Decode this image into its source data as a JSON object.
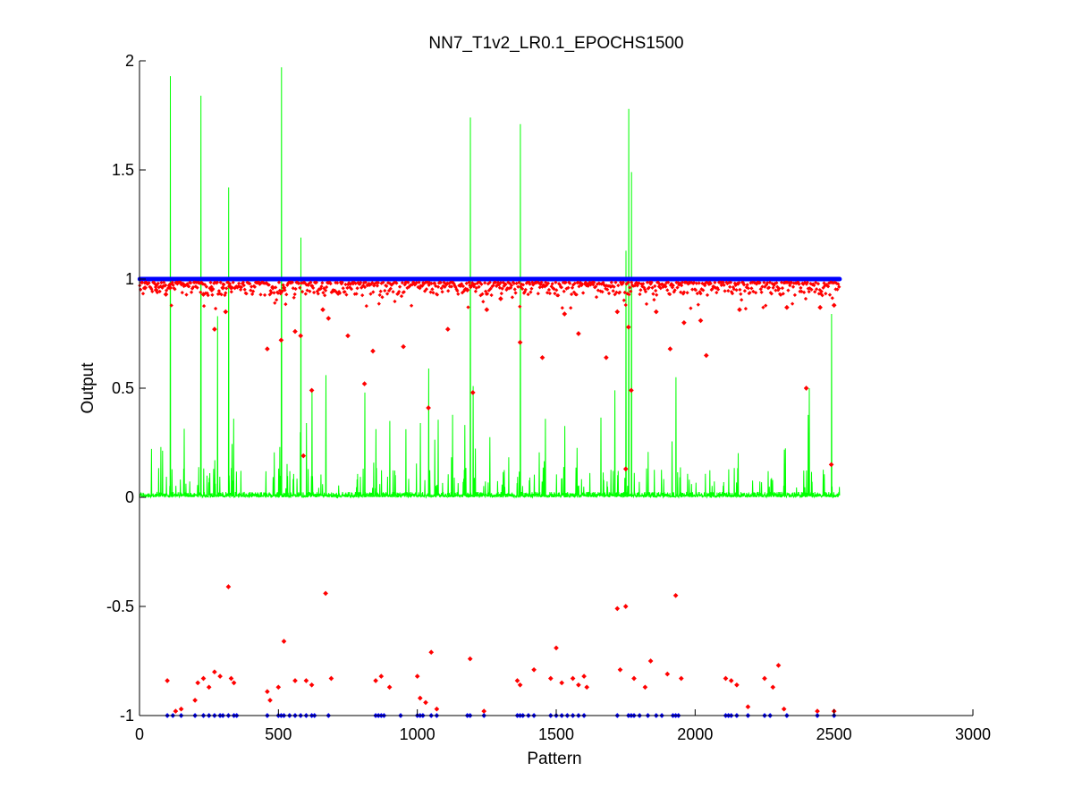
{
  "chart_data": {
    "type": "scatter",
    "title": "NN7_T1v2_LR0.1_EPOCHS1500",
    "xlabel": "Pattern",
    "ylabel": "Output",
    "xlim": [
      0,
      3000
    ],
    "ylim": [
      -1,
      2
    ],
    "xticks": [
      0,
      500,
      1000,
      1500,
      2000,
      2500,
      3000
    ],
    "xtick_labels": [
      "0",
      "500",
      "1000",
      "1500",
      "2000",
      "2500",
      "3000"
    ],
    "yticks": [
      -1,
      -0.5,
      0,
      0.5,
      1,
      1.5,
      2
    ],
    "ytick_labels": [
      "-1",
      "-0.5",
      "0",
      "0.5",
      "1",
      "1.5",
      "2"
    ],
    "grid": false,
    "legend": "none",
    "n_patterns": 2520,
    "colors": {
      "target": "#0000ff",
      "output": "#ff0000",
      "error": "#00ff00",
      "axes": "#000000"
    },
    "series": [
      {
        "style": "blue dots",
        "values_positive_target": {
          "x_range": [
            1,
            2520
          ],
          "y": 1
        },
        "negative_target_x": [
          100,
          120,
          150,
          200,
          230,
          250,
          270,
          290,
          300,
          320,
          340,
          350,
          460,
          500,
          510,
          520,
          540,
          560,
          580,
          600,
          620,
          630,
          680,
          850,
          860,
          870,
          880,
          940,
          1000,
          1010,
          1020,
          1050,
          1070,
          1180,
          1190,
          1240,
          1360,
          1370,
          1380,
          1400,
          1420,
          1480,
          1500,
          1520,
          1540,
          1560,
          1580,
          1600,
          1720,
          1760,
          1770,
          1780,
          1800,
          1830,
          1860,
          1880,
          1920,
          1930,
          1940,
          2110,
          2120,
          2130,
          2150,
          2190,
          2250,
          2270,
          2330,
          2440,
          2500
        ],
        "negative_target_y": -1
      },
      {
        "style": "red dots",
        "upper_points": [
          [
            20,
            0.96
          ],
          [
            60,
            0.95
          ],
          [
            95,
            0.93
          ],
          [
            110,
            0.96
          ],
          [
            230,
            0.93
          ],
          [
            260,
            0.95
          ],
          [
            270,
            0.77
          ],
          [
            300,
            0.96
          ],
          [
            310,
            0.85
          ],
          [
            330,
            0.96
          ],
          [
            460,
            0.68
          ],
          [
            480,
            0.96
          ],
          [
            510,
            0.72
          ],
          [
            520,
            0.96
          ],
          [
            560,
            0.76
          ],
          [
            580,
            0.74
          ],
          [
            590,
            0.19
          ],
          [
            620,
            0.49
          ],
          [
            660,
            0.86
          ],
          [
            680,
            0.82
          ],
          [
            750,
            0.74
          ],
          [
            810,
            0.52
          ],
          [
            840,
            0.67
          ],
          [
            950,
            0.69
          ],
          [
            1040,
            0.41
          ],
          [
            1110,
            0.77
          ],
          [
            1180,
            0.95
          ],
          [
            1200,
            0.48
          ],
          [
            1250,
            0.86
          ],
          [
            1300,
            0.91
          ],
          [
            1370,
            0.71
          ],
          [
            1450,
            0.64
          ],
          [
            1530,
            0.84
          ],
          [
            1580,
            0.75
          ],
          [
            1680,
            0.64
          ],
          [
            1720,
            0.85
          ],
          [
            1750,
            0.13
          ],
          [
            1760,
            0.78
          ],
          [
            1770,
            0.49
          ],
          [
            1860,
            0.85
          ],
          [
            1910,
            0.68
          ],
          [
            1960,
            0.8
          ],
          [
            2020,
            0.81
          ],
          [
            2040,
            0.65
          ],
          [
            2160,
            0.86
          ],
          [
            2330,
            0.87
          ],
          [
            2400,
            0.5
          ],
          [
            2450,
            0.87
          ],
          [
            2490,
            0.15
          ],
          [
            2500,
            0.88
          ]
        ],
        "lower_points": [
          [
            100,
            -0.84
          ],
          [
            130,
            -0.98
          ],
          [
            150,
            -0.97
          ],
          [
            200,
            -0.93
          ],
          [
            210,
            -0.85
          ],
          [
            230,
            -0.83
          ],
          [
            250,
            -0.87
          ],
          [
            270,
            -0.8
          ],
          [
            290,
            -0.82
          ],
          [
            320,
            -0.41
          ],
          [
            330,
            -0.83
          ],
          [
            340,
            -0.85
          ],
          [
            460,
            -0.89
          ],
          [
            470,
            -0.93
          ],
          [
            500,
            -0.87
          ],
          [
            520,
            -0.66
          ],
          [
            560,
            -0.84
          ],
          [
            600,
            -0.84
          ],
          [
            620,
            -0.86
          ],
          [
            670,
            -0.44
          ],
          [
            690,
            -0.83
          ],
          [
            850,
            -0.84
          ],
          [
            870,
            -0.82
          ],
          [
            900,
            -0.87
          ],
          [
            1000,
            -0.82
          ],
          [
            1010,
            -0.92
          ],
          [
            1030,
            -0.94
          ],
          [
            1050,
            -0.71
          ],
          [
            1070,
            -0.97
          ],
          [
            1190,
            -0.74
          ],
          [
            1240,
            -0.98
          ],
          [
            1360,
            -0.84
          ],
          [
            1370,
            -0.86
          ],
          [
            1420,
            -0.79
          ],
          [
            1480,
            -0.83
          ],
          [
            1500,
            -0.69
          ],
          [
            1520,
            -0.85
          ],
          [
            1560,
            -0.83
          ],
          [
            1580,
            -0.86
          ],
          [
            1600,
            -0.82
          ],
          [
            1610,
            -0.87
          ],
          [
            1720,
            -0.51
          ],
          [
            1730,
            -0.79
          ],
          [
            1750,
            -0.5
          ],
          [
            1780,
            -0.83
          ],
          [
            1820,
            -0.87
          ],
          [
            1840,
            -0.75
          ],
          [
            1900,
            -0.81
          ],
          [
            1930,
            -0.45
          ],
          [
            1950,
            -0.83
          ],
          [
            2110,
            -0.83
          ],
          [
            2130,
            -0.84
          ],
          [
            2150,
            -0.86
          ],
          [
            2190,
            -0.96
          ],
          [
            2250,
            -0.83
          ],
          [
            2280,
            -0.87
          ],
          [
            2300,
            -0.77
          ],
          [
            2320,
            -0.97
          ],
          [
            2440,
            -0.98
          ],
          [
            2500,
            -0.98
          ]
        ]
      },
      {
        "style": "green line",
        "spikes": [
          [
            110,
            1.93
          ],
          [
            220,
            1.84
          ],
          [
            270,
            0.17
          ],
          [
            280,
            0.83
          ],
          [
            320,
            1.42
          ],
          [
            510,
            1.97
          ],
          [
            580,
            1.19
          ],
          [
            600,
            0.34
          ],
          [
            620,
            0.49
          ],
          [
            670,
            0.56
          ],
          [
            810,
            0.48
          ],
          [
            900,
            0.35
          ],
          [
            1040,
            0.59
          ],
          [
            1190,
            1.74
          ],
          [
            1200,
            0.51
          ],
          [
            1370,
            1.71
          ],
          [
            1460,
            0.36
          ],
          [
            1710,
            0.49
          ],
          [
            1750,
            1.13
          ],
          [
            1760,
            1.78
          ],
          [
            1770,
            1.49
          ],
          [
            1930,
            0.55
          ],
          [
            2410,
            0.5
          ],
          [
            2490,
            0.84
          ]
        ]
      }
    ]
  }
}
